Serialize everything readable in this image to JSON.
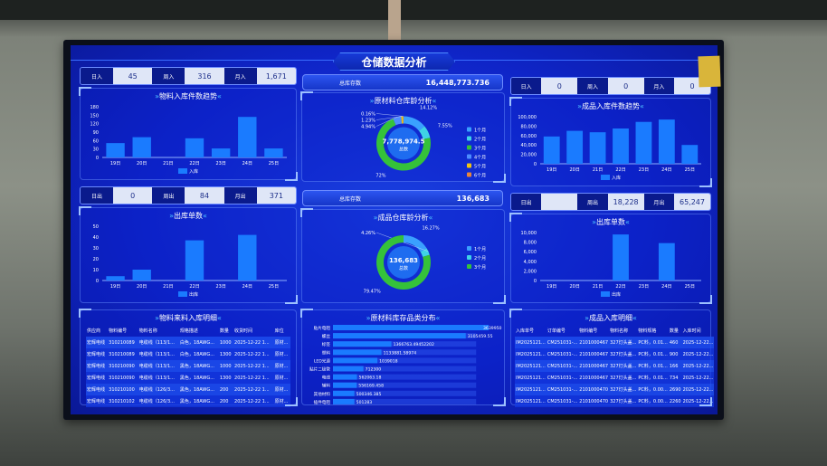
{
  "header": {
    "title": "仓储数据分析"
  },
  "left": {
    "in_stats": {
      "day_label": "日入",
      "day": "45",
      "week_label": "周入",
      "week": "316",
      "month_label": "月入",
      "month": "1,671"
    },
    "out_stats": {
      "day_label": "日出",
      "day": "0",
      "week_label": "周出",
      "week": "84",
      "month_label": "月出",
      "month": "371"
    },
    "table": {
      "title": "物料来料入库明细",
      "headers": [
        "供应商",
        "物料编号",
        "物料名称",
        "规格描述",
        "数量",
        "收货时间",
        "库位"
      ],
      "rows": [
        [
          "宏辉电线",
          "310210089",
          "电缆线（113/1...",
          "白色，18AWG...",
          "1000",
          "2025-12-22 1...",
          "原材..."
        ],
        [
          "宏辉电线",
          "310210089",
          "电缆线（113/1...",
          "白色，18AWG...",
          "1300",
          "2025-12-22 1...",
          "原材..."
        ],
        [
          "宏辉电线",
          "310210090",
          "电缆线（113/1...",
          "黑色，18AWG...",
          "1000",
          "2025-12-22 1...",
          "原材..."
        ],
        [
          "宏辉电线",
          "310210090",
          "电缆线（113/1...",
          "黑色，18AWG...",
          "1300",
          "2025-12-22 1...",
          "原材..."
        ],
        [
          "宏辉电线",
          "310210100",
          "电缆线（126/3...",
          "黑色，18AWG...",
          "200",
          "2025-12-22 1...",
          "原材..."
        ],
        [
          "宏辉电线",
          "310210102",
          "电缆线（126/3...",
          "黑色，18AWG...",
          "200",
          "2025-12-22 1...",
          "原材..."
        ]
      ]
    }
  },
  "middle": {
    "raw_total": {
      "label": "总库存数",
      "value": "16,448,773.736"
    },
    "fin_total": {
      "label": "总库存数",
      "value": "136,683"
    }
  },
  "right": {
    "in_stats": {
      "day_label": "日入",
      "day": "0",
      "week_label": "周入",
      "week": "0",
      "month_label": "月入",
      "month": "0"
    },
    "out_stats": {
      "day_label": "日出",
      "day": "",
      "week_label": "周出",
      "week": "18,228",
      "month_label": "月出",
      "month": "65,247"
    },
    "table": {
      "title": "成品入库明细",
      "headers": [
        "入库单号",
        "订单编号",
        "物料编号",
        "物料名称",
        "物料规格",
        "数量",
        "入库时间"
      ],
      "rows": [
        [
          "IM2025121...",
          "CM251031-...",
          "2101000467",
          "327灯头盖...",
          "PC料，0.01...",
          "460",
          "2025-12-22..."
        ],
        [
          "IM2025121...",
          "CM251031-...",
          "2101000467",
          "327灯头盖...",
          "PC料，0.01...",
          "900",
          "2025-12-22..."
        ],
        [
          "IM2025121...",
          "CM251031-...",
          "2101000467",
          "327灯头盖...",
          "PC料，0.01...",
          "166",
          "2025-12-22..."
        ],
        [
          "IM2025121...",
          "CM251031-...",
          "2101000467",
          "327灯头盖...",
          "PC料，0.01...",
          "734",
          "2025-12-22..."
        ],
        [
          "IM2025121...",
          "CM251031-...",
          "2101000470",
          "327灯头盖...",
          "PC料，0.00...",
          "2690",
          "2025-12-22..."
        ],
        [
          "IM2025121...",
          "CM251031-...",
          "2101000470",
          "327灯头盖...",
          "PC料，0.00...",
          "2260",
          "2025-12-22..."
        ]
      ]
    }
  },
  "colors": {
    "bar": "#1a7bff",
    "green": "#35c23a",
    "cyan": "#3fd3e6",
    "light": "#3aa0ff",
    "yellow": "#f2c511",
    "orange": "#e8863a"
  },
  "chart_data": [
    {
      "id": "material_in",
      "type": "bar",
      "title": "物料入库件数趋势",
      "categories": [
        "19日",
        "20日",
        "21日",
        "22日",
        "23日",
        "24日",
        "25日"
      ],
      "series": [
        {
          "name": "入库",
          "values": [
            51,
            72,
            0,
            68,
            32,
            144,
            32
          ]
        }
      ],
      "ylim": [
        0,
        180
      ],
      "yticks": [
        "0",
        "30",
        "60",
        "90",
        "120",
        "150",
        "180"
      ],
      "legend": "bottom"
    },
    {
      "id": "material_out",
      "type": "bar",
      "title": "出库单数",
      "categories": [
        "19日",
        "20日",
        "21日",
        "22日",
        "23日",
        "24日",
        "25日"
      ],
      "series": [
        {
          "name": "出库",
          "values": [
            4,
            10,
            0,
            37,
            0,
            42,
            0
          ]
        }
      ],
      "ylim": [
        0,
        50
      ],
      "yticks": [
        "0",
        "10",
        "20",
        "30",
        "40",
        "50"
      ],
      "legend": "bottom"
    },
    {
      "id": "product_in",
      "type": "bar",
      "title": "成品入库件数趋势",
      "categories": [
        "19日",
        "20日",
        "21日",
        "22日",
        "23日",
        "24日",
        "25日"
      ],
      "series": [
        {
          "name": "入库",
          "values": [
            58000,
            70000,
            67000,
            75000,
            89000,
            94000,
            40000
          ]
        }
      ],
      "ylim": [
        0,
        100000
      ],
      "yticks": [
        "0",
        "20,000",
        "40,000",
        "60,000",
        "80,000",
        "100,000"
      ],
      "legend": "bottom"
    },
    {
      "id": "product_out",
      "type": "bar",
      "title": "出库单数",
      "categories": [
        "19日",
        "20日",
        "21日",
        "22日",
        "23日",
        "24日",
        "25日"
      ],
      "series": [
        {
          "name": "出库",
          "values": [
            0,
            0,
            0,
            9600,
            0,
            7800,
            0
          ]
        }
      ],
      "ylim": [
        0,
        10000
      ],
      "yticks": [
        "0",
        "2,000",
        "4,000",
        "6,000",
        "8,000",
        "10,000"
      ],
      "legend": "bottom"
    },
    {
      "id": "raw_age",
      "type": "pie",
      "title": "原材料仓库龄分析",
      "center_value": "7,778,974.5",
      "center_label": "总数",
      "legend": "right",
      "slices": [
        {
          "name": "1个月",
          "value": 14.12,
          "label": "14.12%",
          "color": "#3aa0ff"
        },
        {
          "name": "2个月",
          "value": 7.55,
          "label": "7.55%",
          "color": "#3fd3e6"
        },
        {
          "name": "3个月",
          "value": 72,
          "label": "72%",
          "color": "#35c23a"
        },
        {
          "name": "4个月",
          "value": 4.94,
          "label": "4.94%",
          "color": "#4d8dff"
        },
        {
          "name": "5个月",
          "value": 1.23,
          "label": "1.23%",
          "color": "#f2c511"
        },
        {
          "name": "6个月",
          "value": 0.16,
          "label": "0.16%",
          "color": "#e8863a"
        }
      ]
    },
    {
      "id": "fin_age",
      "type": "pie",
      "title": "成品仓库龄分析",
      "center_value": "136,683",
      "center_label": "总数",
      "legend": "right",
      "slices": [
        {
          "name": "1个月",
          "value": 16.27,
          "label": "16.27%",
          "color": "#3aa0ff"
        },
        {
          "name": "2个月",
          "value": 4.26,
          "label": "4.26%",
          "color": "#3fd3e6"
        },
        {
          "name": "3个月",
          "value": 79.47,
          "label": "79.47%",
          "color": "#35c23a"
        }
      ]
    },
    {
      "id": "raw_category",
      "type": "bar",
      "orientation": "horizontal",
      "title": "原材料库存品类分布",
      "categories": [
        "贴片电阻",
        "螺丝",
        "标签",
        "塑料",
        "LED光源",
        "贴片二极管",
        "电线",
        "辅料",
        "其他材料",
        "插件电阻"
      ],
      "labels": [
        "3639950",
        "3105459.55",
        "1366763.49452202",
        "1133881.58974",
        "1039018",
        "712300",
        "562063.18",
        "556169.458",
        "500346.385",
        "501283"
      ],
      "values": [
        3639950,
        3105459.55,
        1366763.49452202,
        1133881.58974,
        1039018,
        712300,
        562063.18,
        556169.458,
        500346.385,
        501283
      ]
    }
  ]
}
